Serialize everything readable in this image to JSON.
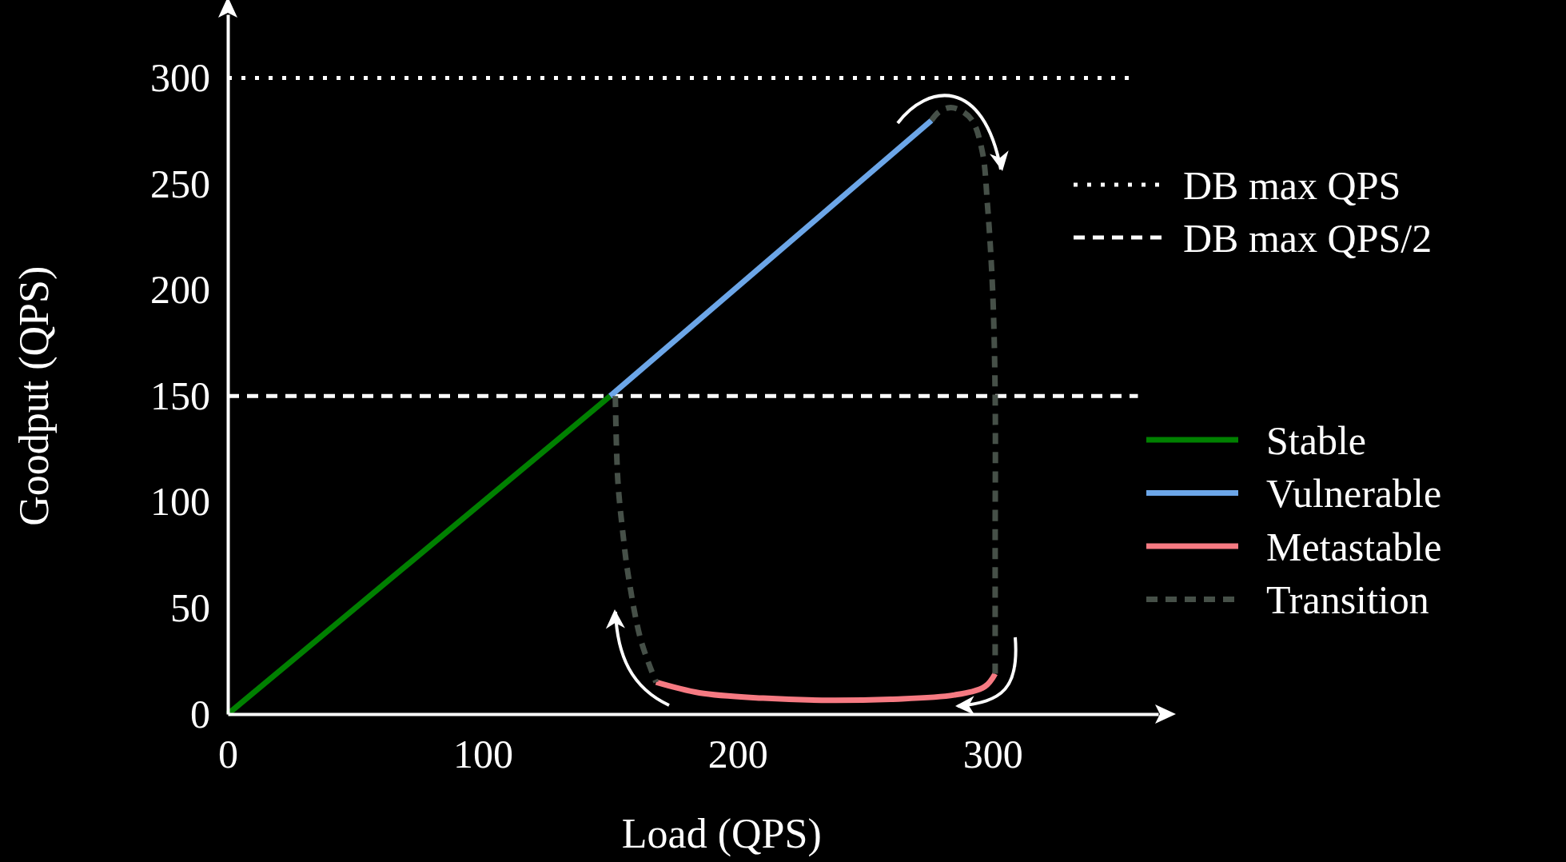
{
  "chart_data": {
    "type": "line",
    "xlabel": "Load (QPS)",
    "ylabel": "Goodput (QPS)",
    "xlim": [
      0,
      365
    ],
    "ylim": [
      0,
      330
    ],
    "xticks": [
      0,
      100,
      200,
      300
    ],
    "yticks": [
      0,
      50,
      100,
      150,
      200,
      250,
      300
    ],
    "grid": false,
    "legend": "right",
    "marker": "none",
    "series": [
      {
        "name": "Stable",
        "color": "#008000",
        "x": [
          0,
          150
        ],
        "values": [
          0,
          150
        ]
      },
      {
        "name": "Vulnerable",
        "color": "#6ca6e8",
        "x": [
          150,
          276
        ],
        "values": [
          150,
          280
        ]
      },
      {
        "name": "Metastable",
        "color": "#f67a82",
        "x": [
          168,
          185,
          210,
          233,
          260,
          285,
          297,
          301
        ],
        "values": [
          15,
          10,
          7.5,
          6.5,
          7,
          9,
          13,
          19
        ]
      },
      {
        "name": "Transition",
        "color": "#465048",
        "line_style": "dashed",
        "x": [
          276,
          279,
          283,
          287,
          292,
          296,
          298,
          300,
          301,
          301,
          301,
          null,
          152,
          153,
          155,
          157,
          162,
          168
        ],
        "values": [
          280,
          284,
          286,
          285,
          280,
          265,
          240,
          200,
          150,
          80,
          19,
          null,
          150,
          110,
          85,
          66,
          35,
          15
        ]
      }
    ],
    "ref_lines": [
      {
        "axis": "y",
        "value": 300,
        "label": "DB max QPS",
        "color": "#ffffff",
        "line_style": "dotted"
      },
      {
        "axis": "y",
        "value": 150,
        "label": "DB max QPS/2",
        "color": "#ffffff",
        "line_style": "dashed"
      }
    ]
  }
}
